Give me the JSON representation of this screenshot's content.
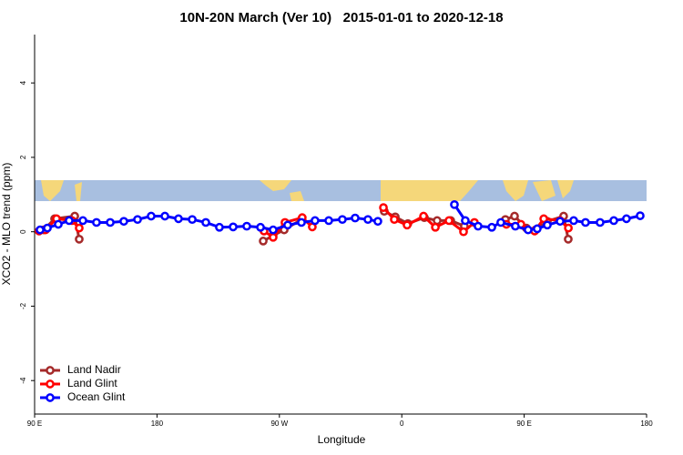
{
  "chart_data": {
    "type": "line",
    "title": "10N-20N March (Ver 10)   2015-01-01 to 2020-12-18",
    "x_label": "Longitude",
    "y_label": "XCO2 - MLO trend (ppm)",
    "xlim": [
      90,
      540
    ],
    "xticks": [
      {
        "value": 90,
        "label": "90 E"
      },
      180,
      {
        "value": 270,
        "label": "90 W"
      },
      {
        "value": 360,
        "label": "0"
      },
      {
        "value": 450,
        "label": "90 E"
      },
      {
        "value": 540,
        "label": "180"
      }
    ],
    "ylim": [
      -4.9,
      5.3
    ],
    "yticks": [
      -4,
      -2,
      0,
      2,
      4
    ],
    "legend": "bottomleft",
    "series": [
      {
        "name": "Land Nadir",
        "color": "#a52a2a",
        "x": [
          96.7,
          104.7,
          119.5,
          122.8,
          null,
          258.1,
          265.4,
          273.5,
          286.2,
          null,
          347.1,
          355.2,
          364.5,
          376.6,
          386,
          396,
          406,
          null,
          436.2,
          442.9,
          451.6,
          458.3,
          467,
          479,
          482.4
        ],
        "values": [
          0.05,
          0.35,
          0.42,
          -0.2,
          null,
          -0.25,
          -0.1,
          0.05,
          0.33,
          null,
          0.55,
          0.4,
          0.22,
          0.38,
          0.3,
          0.3,
          0.15,
          null,
          0.33,
          0.42,
          0.1,
          0.05,
          0.28,
          0.42,
          -0.2
        ]
      },
      {
        "name": "Land Glint",
        "color": "#ff0000",
        "x": [
          93.3,
          98,
          106.1,
          117.5,
          122.8,
          null,
          258.7,
          265.4,
          274.1,
          286.8,
          294.2,
          null,
          346.5,
          354.5,
          363.9,
          376,
          384.7,
          394.7,
          405.4,
          413.4,
          null,
          436.9,
          447.6,
          457.7,
          464.4,
          476.4,
          482.5
        ],
        "values": [
          0.02,
          0.05,
          0.35,
          0.3,
          0.1,
          null,
          0.02,
          -0.15,
          0.25,
          0.38,
          0.13,
          null,
          0.65,
          0.33,
          0.18,
          0.42,
          0.12,
          0.3,
          0.0,
          0.25,
          null,
          0.2,
          0.2,
          0.02,
          0.35,
          0.3,
          0.1
        ]
      },
      {
        "name": "Ocean Glint",
        "color": "#0000ff",
        "x": [
          94,
          99.4,
          107.4,
          115.4,
          125.5,
          135.5,
          145.6,
          155.6,
          165.7,
          175.7,
          185.8,
          195.8,
          205.9,
          215.9,
          225.9,
          236,
          246,
          256.1,
          265.4,
          276.1,
          286.2,
          296.2,
          306.3,
          316.3,
          325.7,
          335.1,
          342.4,
          null,
          398.7,
          406.7,
          416.1,
          426.2,
          432.8,
          443.5,
          452.9,
          459.6,
          467,
          476.4,
          486.4,
          495.1,
          505.8,
          515.9,
          525.2,
          535.3
        ],
        "values": [
          0.05,
          0.1,
          0.2,
          0.3,
          0.3,
          0.25,
          0.25,
          0.28,
          0.33,
          0.42,
          0.42,
          0.35,
          0.33,
          0.25,
          0.12,
          0.13,
          0.15,
          0.12,
          0.05,
          0.18,
          0.25,
          0.3,
          0.3,
          0.33,
          0.37,
          0.33,
          0.28,
          null,
          0.73,
          0.3,
          0.15,
          0.12,
          0.25,
          0.15,
          0.05,
          0.08,
          0.18,
          0.28,
          0.3,
          0.25,
          0.25,
          0.3,
          0.35,
          0.43
        ]
      }
    ]
  }
}
